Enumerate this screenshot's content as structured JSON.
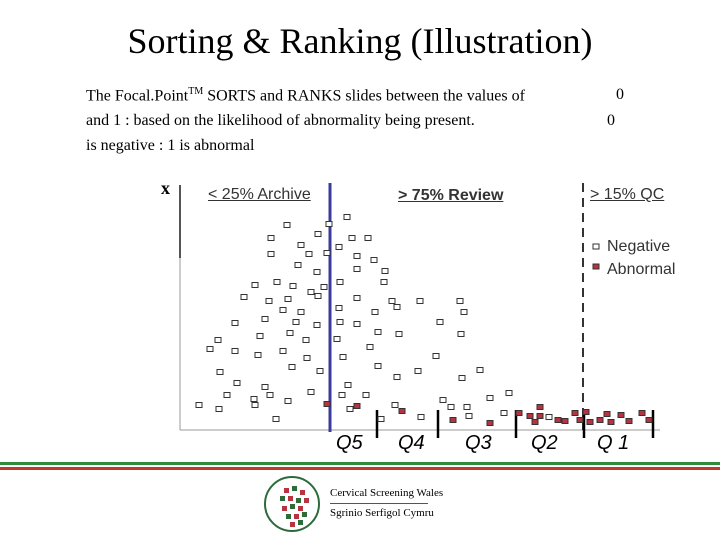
{
  "title": "Sorting & Ranking (Illustration)",
  "text": {
    "line1_a": "The Focal.Point",
    "line1_tm": "TM",
    "line1_b": " SORTS and RANKS slides between the values of",
    "line1_val": "0",
    "line2": "and 1 : based on the likelihood of abnormality being present.",
    "line2_val": "0",
    "line3": "is negative : 1 is abnormal",
    "axis_marker": "x"
  },
  "labels": {
    "archive": "< 25% Archive",
    "review": "> 75% Review",
    "qc": "> 15% QC"
  },
  "legend": [
    {
      "label": "Negative",
      "color": "#ffffff"
    },
    {
      "label": "Abnormal",
      "color": "#b8323f"
    }
  ],
  "quintiles": [
    "Q5",
    "Q4",
    "Q3",
    "Q2",
    "Q 1"
  ],
  "colors": {
    "threshold_line": "#3b3b9e",
    "qc_line": "#333333",
    "negative_point": "#ffffff",
    "abnormal_point": "#b8323f",
    "stripe_green": "#2e8b3c",
    "stripe_red": "#c0392b"
  },
  "logo": {
    "line1": "Cervical Screening Wales",
    "line2": "Sgrinio Serfigol Cymru"
  }
}
